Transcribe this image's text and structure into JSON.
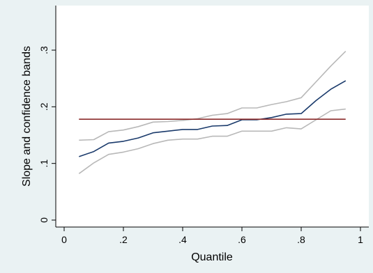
{
  "chart_data": {
    "type": "line",
    "xlabel": "Quantile",
    "ylabel": "Slope and confidence bands",
    "xlim": [
      0,
      1
    ],
    "ylim": [
      0,
      0.35
    ],
    "x_ticks": [
      0,
      0.2,
      0.4,
      0.6,
      0.8,
      1
    ],
    "x_tick_labels": [
      "0",
      ".2",
      ".4",
      ".6",
      ".8",
      "1"
    ],
    "y_ticks": [
      0,
      0.1,
      0.2,
      0.3
    ],
    "y_tick_labels": [
      "0",
      ".1",
      ".2",
      ".3"
    ],
    "grid": false,
    "colors": {
      "background": "#eaf2f3",
      "plot_area": "#ffffff",
      "estimate": "#1a3a6b",
      "bands": "#b8b8b8",
      "ols": "#8b2a2a"
    },
    "x": [
      0.05,
      0.1,
      0.15,
      0.2,
      0.25,
      0.3,
      0.35,
      0.4,
      0.45,
      0.5,
      0.55,
      0.6,
      0.65,
      0.7,
      0.75,
      0.8,
      0.85,
      0.9,
      0.95
    ],
    "series": [
      {
        "role": "upper-band",
        "values": [
          0.141,
          0.142,
          0.156,
          0.159,
          0.165,
          0.173,
          0.174,
          0.176,
          0.179,
          0.185,
          0.188,
          0.198,
          0.198,
          0.204,
          0.209,
          0.216,
          0.244,
          0.272,
          0.298
        ]
      },
      {
        "role": "estimate",
        "values": [
          0.112,
          0.121,
          0.136,
          0.139,
          0.145,
          0.154,
          0.157,
          0.16,
          0.16,
          0.166,
          0.167,
          0.177,
          0.177,
          0.181,
          0.187,
          0.188,
          0.211,
          0.231,
          0.246
        ]
      },
      {
        "role": "lower-band",
        "values": [
          0.082,
          0.101,
          0.116,
          0.12,
          0.126,
          0.135,
          0.141,
          0.143,
          0.143,
          0.148,
          0.148,
          0.157,
          0.157,
          0.157,
          0.163,
          0.161,
          0.177,
          0.193,
          0.196
        ]
      }
    ],
    "reference_line": {
      "y": 0.178,
      "x_range": [
        0.05,
        0.95
      ]
    }
  }
}
